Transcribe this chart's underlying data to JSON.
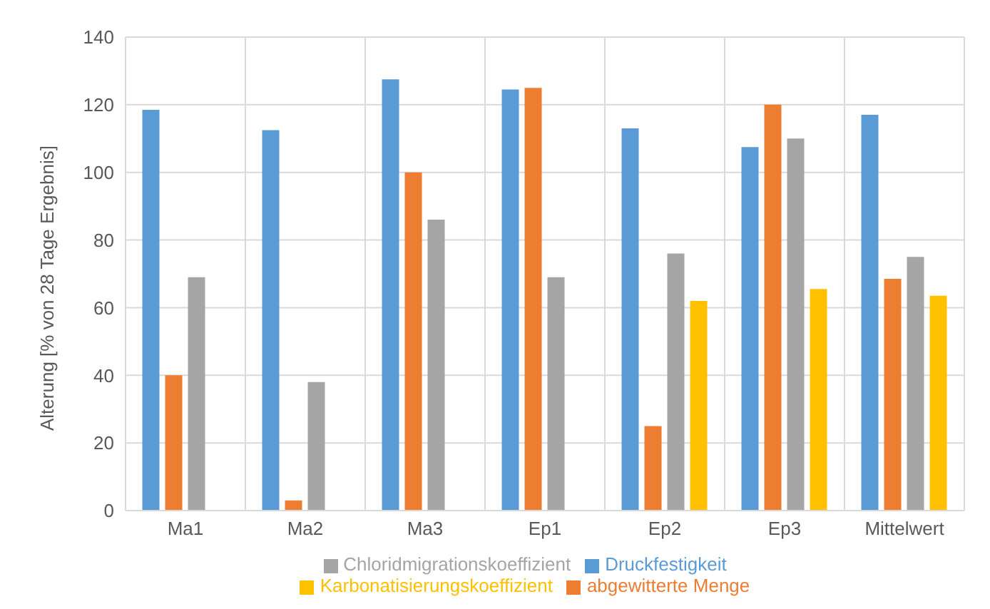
{
  "chart_data": {
    "type": "bar",
    "ylabel": "Alterung [% von 28 Tage Ergebnis]",
    "categories": [
      "Ma1",
      "Ma2",
      "Ma3",
      "Ep1",
      "Ep2",
      "Ep3",
      "Mittelwert"
    ],
    "series": [
      {
        "name": "Druckfestigkeit",
        "color": "#5b9bd5",
        "values": [
          118.5,
          112.5,
          127.5,
          124.5,
          113,
          107.5,
          117
        ]
      },
      {
        "name": "abgewitterte Menge",
        "color": "#ed7d31",
        "values": [
          40,
          3,
          100,
          125,
          25,
          120,
          68.5
        ]
      },
      {
        "name": "Chloridmigrationskoeffizient",
        "color": "#a5a5a5",
        "values": [
          69,
          38,
          86,
          69,
          76,
          110,
          75
        ]
      },
      {
        "name": "Karbonatisierungskoeffizient",
        "color": "#ffc000",
        "values": [
          null,
          null,
          null,
          null,
          62,
          65.5,
          63.5
        ]
      }
    ],
    "ylim": [
      0,
      140
    ],
    "yticks": [
      0,
      20,
      40,
      60,
      80,
      100,
      120,
      140
    ],
    "grid": true,
    "legend": "bottom"
  }
}
